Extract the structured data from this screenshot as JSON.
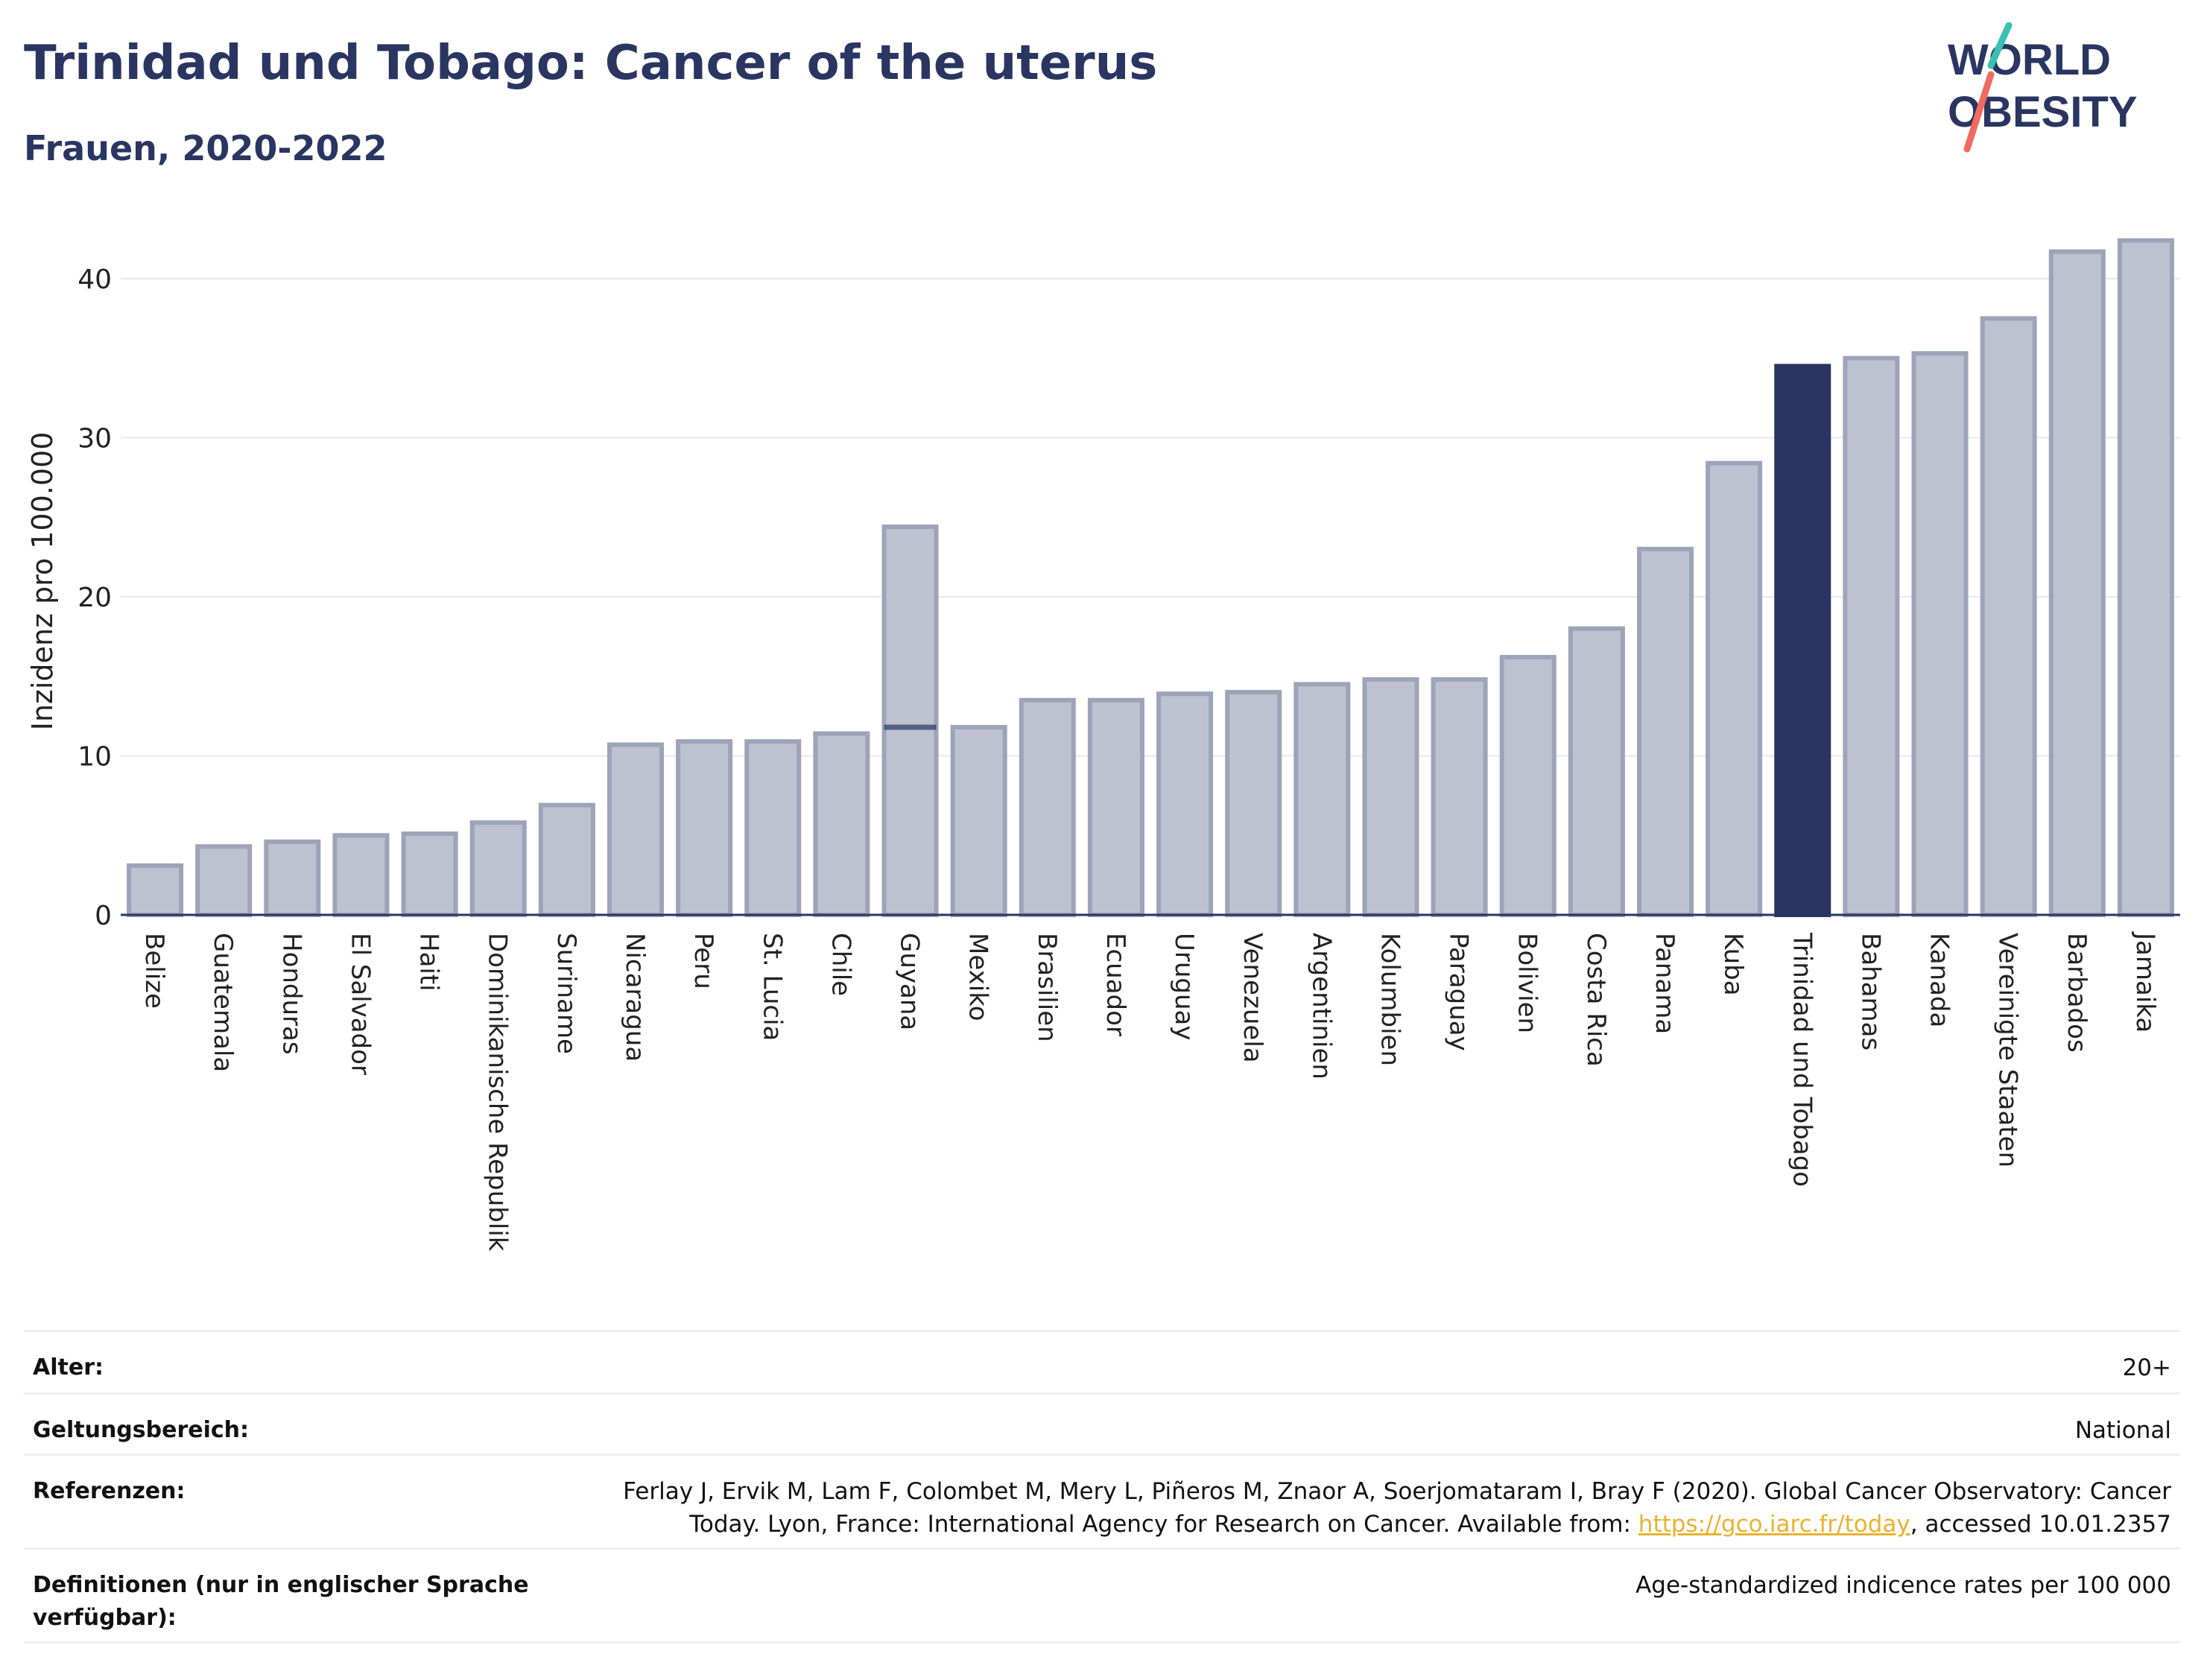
{
  "title": "Trinidad und Tobago: Cancer of the uterus",
  "subtitle": "Frauen, 2020-2022",
  "logo": {
    "line1": "WORLD",
    "line2": "OBESITY"
  },
  "colors": {
    "bar": "#bec2d0",
    "bar_stroke": "#9da3b8",
    "highlight": "#2a3561",
    "title": "#2a3561",
    "link": "#e8b330"
  },
  "chart_data": {
    "type": "bar",
    "ylabel": "Inzidenz pro 100.000",
    "xlabel": "",
    "ylim": [
      0,
      43
    ],
    "yticks": [
      0,
      10,
      20,
      30,
      40
    ],
    "highlight": "Trinidad und Tobago",
    "categories": [
      "Belize",
      "Guatemala",
      "Honduras",
      "El Salvador",
      "Haiti",
      "Dominikanische Republik",
      "Suriname",
      "Nicaragua",
      "Peru",
      "St. Lucia",
      "Chile",
      "Guyana",
      "Mexiko",
      "Brasilien",
      "Ecuador",
      "Uruguay",
      "Venezuela",
      "Argentinien",
      "Kolumbien",
      "Paraguay",
      "Bolivien",
      "Costa Rica",
      "Panama",
      "Kuba",
      "Trinidad und Tobago",
      "Bahamas",
      "Kanada",
      "Vereinigte Staaten",
      "Barbados",
      "Jamaika"
    ],
    "values": [
      3.1,
      4.3,
      4.6,
      5.0,
      5.1,
      5.8,
      6.9,
      10.7,
      10.9,
      10.9,
      11.4,
      24.4,
      11.8,
      13.5,
      13.5,
      13.9,
      14.0,
      14.5,
      14.8,
      14.8,
      16.2,
      18.0,
      23.0,
      28.4,
      34.5,
      35.0,
      35.3,
      37.5,
      41.7,
      42.4
    ],
    "extra_marks": [
      {
        "category": "Guyana",
        "value": 11.8
      }
    ]
  },
  "info": [
    {
      "label": "Alter:",
      "value": "20+"
    },
    {
      "label": "Geltungsbereich:",
      "value": "National"
    },
    {
      "label": "Referenzen:",
      "value_before": "Ferlay J, Ervik M, Lam F, Colombet M, Mery L, Piñeros M, Znaor A, Soerjomataram I, Bray F (2020). Global Cancer Observatory: Cancer Today. Lyon, France: International Agency for Research on Cancer. Available from: ",
      "link": "https://gco.iarc.fr/today",
      "value_after": ", accessed 10.01.2357"
    },
    {
      "label": "Definitionen (nur in englischer Sprache verfügbar):",
      "value": "Age-standardized indicence rates per 100 000"
    }
  ]
}
